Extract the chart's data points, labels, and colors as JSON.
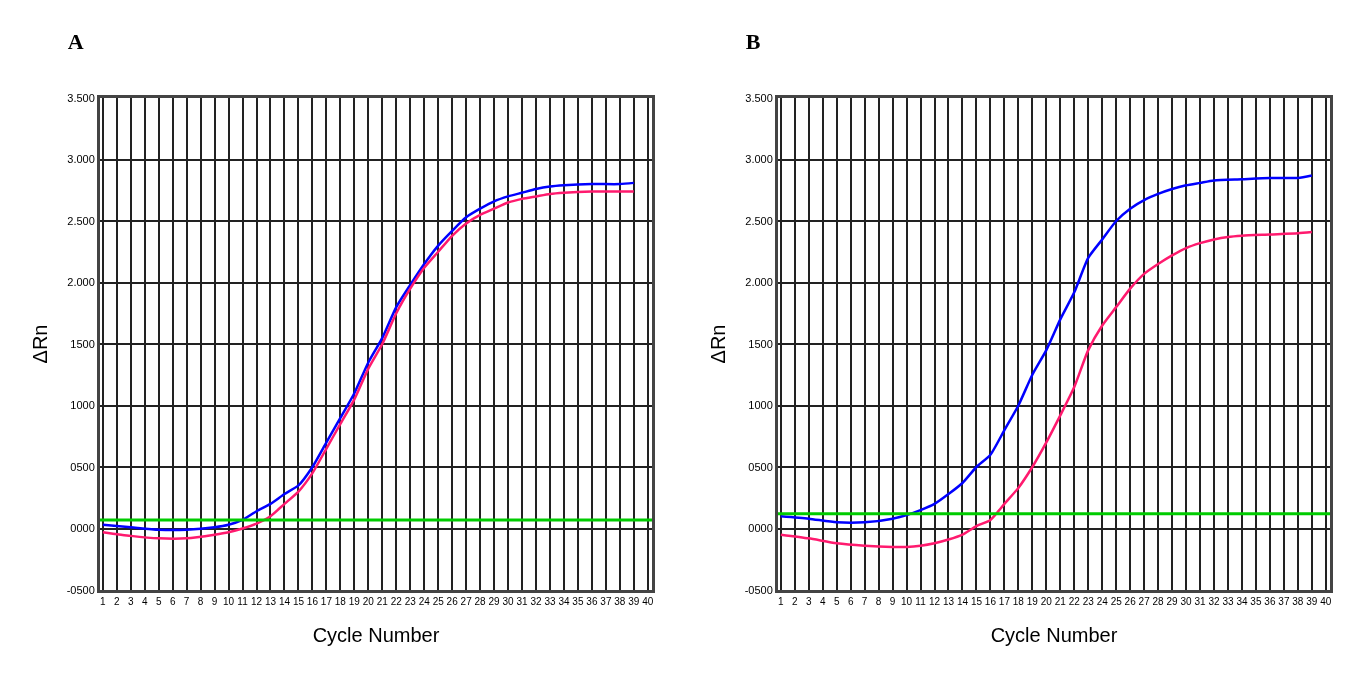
{
  "chart_data": [
    {
      "type": "line",
      "title": "A",
      "xlabel": "Cycle Number",
      "ylabel": "ΔRn",
      "grid": true,
      "marker": "none",
      "line_style": "solid",
      "xlim": [
        0.8,
        40.3
      ],
      "xticks": [
        1,
        2,
        3,
        4,
        5,
        6,
        7,
        8,
        9,
        10,
        11,
        12,
        13,
        14,
        15,
        16,
        17,
        18,
        19,
        20,
        21,
        22,
        23,
        24,
        25,
        26,
        27,
        28,
        29,
        30,
        31,
        32,
        33,
        34,
        35,
        36,
        37,
        38,
        39,
        40
      ],
      "ylim": [
        -500,
        3500
      ],
      "yticks": [
        {
          "value": -500,
          "label": "-0500"
        },
        {
          "value": 0,
          "label": "0000"
        },
        {
          "value": 500,
          "label": "0500"
        },
        {
          "value": 1000,
          "label": "1000"
        },
        {
          "value": 1500,
          "label": "1500"
        },
        {
          "value": 2000,
          "label": "2.000"
        },
        {
          "value": 2500,
          "label": "2.500"
        },
        {
          "value": 3000,
          "label": "3.000"
        },
        {
          "value": 3500,
          "label": "3.500"
        }
      ],
      "ref_lines": [
        {
          "axis": "y",
          "value": 70,
          "label": null,
          "color": "#00cc00"
        }
      ],
      "series": [
        {
          "color": "#0000ff",
          "x": [
            1,
            3,
            5,
            7,
            9,
            10,
            11,
            12,
            13,
            14,
            15,
            16,
            17,
            18,
            19,
            20,
            21,
            22,
            23,
            24,
            25,
            26,
            27,
            28,
            29,
            30,
            31,
            32,
            33,
            34,
            36,
            38,
            39
          ],
          "values": [
            30,
            10,
            -10,
            -10,
            10,
            30,
            70,
            140,
            200,
            280,
            350,
            500,
            700,
            900,
            1100,
            1350,
            1550,
            1800,
            1980,
            2150,
            2300,
            2420,
            2530,
            2600,
            2660,
            2700,
            2730,
            2760,
            2780,
            2790,
            2800,
            2800,
            2810
          ]
        },
        {
          "color": "#ff1a6e",
          "x": [
            1,
            3,
            5,
            7,
            9,
            10,
            11,
            12,
            13,
            14,
            15,
            16,
            17,
            18,
            19,
            20,
            21,
            22,
            23,
            24,
            25,
            26,
            27,
            28,
            29,
            30,
            31,
            32,
            33,
            34,
            36,
            39
          ],
          "values": [
            -30,
            -60,
            -80,
            -80,
            -50,
            -30,
            0,
            40,
            100,
            200,
            300,
            450,
            650,
            850,
            1050,
            1300,
            1500,
            1750,
            1950,
            2120,
            2250,
            2380,
            2480,
            2550,
            2600,
            2650,
            2680,
            2700,
            2720,
            2730,
            2740,
            2740
          ]
        }
      ]
    },
    {
      "type": "line",
      "title": "B",
      "xlabel": "Cycle Number",
      "ylabel": "ΔRn",
      "grid": true,
      "marker": "none",
      "line_style": "solid",
      "xlim": [
        0.8,
        40.3
      ],
      "xticks": [
        1,
        2,
        3,
        4,
        5,
        6,
        7,
        8,
        9,
        10,
        11,
        12,
        13,
        14,
        15,
        16,
        17,
        18,
        19,
        20,
        21,
        22,
        23,
        24,
        25,
        26,
        27,
        28,
        29,
        30,
        31,
        32,
        33,
        34,
        35,
        36,
        37,
        38,
        39,
        40
      ],
      "ylim": [
        -500,
        3500
      ],
      "yticks": [
        {
          "value": -500,
          "label": "-0500"
        },
        {
          "value": 0,
          "label": "0000"
        },
        {
          "value": 500,
          "label": "0500"
        },
        {
          "value": 1000,
          "label": "1000"
        },
        {
          "value": 1500,
          "label": "1500"
        },
        {
          "value": 2000,
          "label": "2.000"
        },
        {
          "value": 2500,
          "label": "2.500"
        },
        {
          "value": 3000,
          "label": "3.000"
        },
        {
          "value": 3500,
          "label": "3.500"
        }
      ],
      "ref_lines": [
        {
          "axis": "y",
          "value": 120,
          "label": null,
          "color": "#00cc00"
        }
      ],
      "series": [
        {
          "color": "#0000ff",
          "x": [
            1,
            3,
            5,
            7,
            9,
            10,
            11,
            12,
            13,
            14,
            15,
            16,
            17,
            18,
            19,
            20,
            21,
            22,
            23,
            24,
            25,
            26,
            27,
            28,
            29,
            30,
            31,
            32,
            34,
            36,
            38,
            39
          ],
          "values": [
            100,
            80,
            50,
            50,
            80,
            110,
            150,
            200,
            280,
            370,
            500,
            600,
            800,
            1000,
            1250,
            1450,
            1700,
            1920,
            2200,
            2350,
            2500,
            2600,
            2670,
            2720,
            2760,
            2790,
            2810,
            2830,
            2840,
            2850,
            2850,
            2870
          ]
        },
        {
          "color": "#ff1a6e",
          "x": [
            1,
            3,
            5,
            7,
            9,
            10,
            11,
            12,
            13,
            14,
            15,
            16,
            17,
            18,
            19,
            20,
            21,
            22,
            23,
            24,
            25,
            26,
            27,
            28,
            29,
            30,
            31,
            32,
            33,
            34,
            36,
            38,
            39
          ],
          "values": [
            -50,
            -80,
            -120,
            -140,
            -150,
            -150,
            -140,
            -120,
            -90,
            -50,
            20,
            70,
            200,
            330,
            500,
            700,
            920,
            1150,
            1450,
            1650,
            1800,
            1950,
            2070,
            2150,
            2220,
            2280,
            2320,
            2350,
            2370,
            2380,
            2390,
            2400,
            2410
          ]
        }
      ]
    }
  ]
}
